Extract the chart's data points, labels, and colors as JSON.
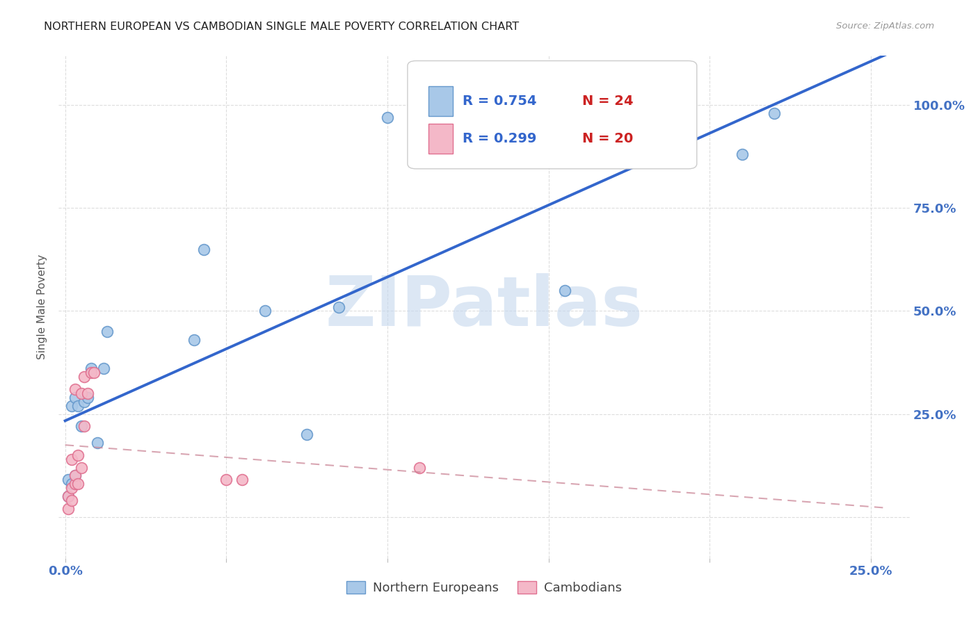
{
  "title": "NORTHERN EUROPEAN VS CAMBODIAN SINGLE MALE POVERTY CORRELATION CHART",
  "source": "Source: ZipAtlas.com",
  "ylabel_label": "Single Male Poverty",
  "ne_x": [
    0.001,
    0.001,
    0.002,
    0.002,
    0.003,
    0.003,
    0.004,
    0.005,
    0.006,
    0.007,
    0.008,
    0.01,
    0.012,
    0.013,
    0.04,
    0.043,
    0.062,
    0.075,
    0.085,
    0.1,
    0.155,
    0.175,
    0.21,
    0.22
  ],
  "ne_y": [
    0.05,
    0.09,
    0.08,
    0.27,
    0.1,
    0.29,
    0.27,
    0.22,
    0.28,
    0.29,
    0.36,
    0.18,
    0.36,
    0.45,
    0.43,
    0.65,
    0.5,
    0.2,
    0.51,
    0.97,
    0.55,
    0.98,
    0.88,
    0.98
  ],
  "cam_x": [
    0.001,
    0.001,
    0.002,
    0.002,
    0.002,
    0.003,
    0.003,
    0.003,
    0.004,
    0.004,
    0.005,
    0.005,
    0.006,
    0.006,
    0.007,
    0.008,
    0.009,
    0.05,
    0.055,
    0.11
  ],
  "cam_y": [
    0.02,
    0.05,
    0.04,
    0.07,
    0.14,
    0.08,
    0.1,
    0.31,
    0.08,
    0.15,
    0.12,
    0.3,
    0.22,
    0.34,
    0.3,
    0.35,
    0.35,
    0.09,
    0.09,
    0.12
  ],
  "ne_color": "#a8c8e8",
  "ne_edge_color": "#6699cc",
  "cam_color": "#f4b8c8",
  "cam_edge_color": "#e07090",
  "ne_line_color": "#3366cc",
  "cam_line_color": "#cc8899",
  "ne_r": 0.754,
  "ne_n": 24,
  "cam_r": 0.299,
  "cam_n": 20,
  "marker_size": 130,
  "background_color": "#ffffff",
  "grid_color": "#dddddd",
  "title_color": "#222222",
  "axis_label_color": "#4472c4",
  "source_color": "#999999",
  "legend_r_color": "#3366cc",
  "legend_n_color": "#cc2222",
  "xlim": [
    -0.002,
    0.262
  ],
  "ylim": [
    -0.1,
    1.12
  ],
  "xtick_positions": [
    0.0,
    0.05,
    0.1,
    0.15,
    0.2,
    0.25
  ],
  "xtick_labels": [
    "0.0%",
    "",
    "",
    "",
    "",
    "25.0%"
  ],
  "ytick_positions": [
    0.0,
    0.25,
    0.5,
    0.75,
    1.0
  ],
  "ytick_labels": [
    "",
    "25.0%",
    "50.0%",
    "75.0%",
    "100.0%"
  ],
  "watermark_text": "ZIPatlas",
  "watermark_color": "#c5d8ee",
  "watermark_alpha": 0.6
}
